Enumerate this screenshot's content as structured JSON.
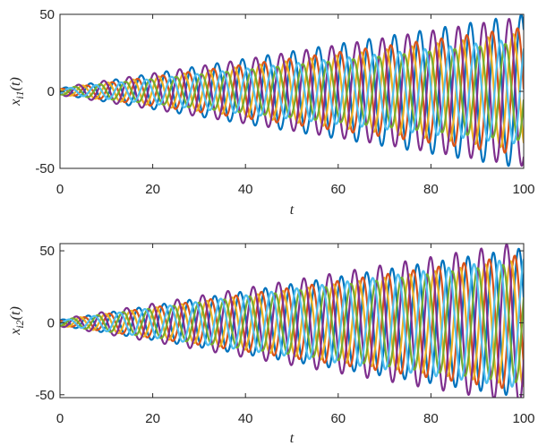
{
  "chart_data": [
    {
      "type": "line",
      "title": "",
      "xlabel": "t",
      "ylabel": "x_{i1}(t)",
      "ylabel_display": {
        "base": "x",
        "sub": "i1",
        "suffix": "(t)"
      },
      "xlim": [
        0,
        100
      ],
      "ylim": [
        -50,
        50
      ],
      "xticks": [
        0,
        20,
        40,
        60,
        80,
        100
      ],
      "yticks": [
        -50,
        0,
        50
      ],
      "xtick_labels": [
        "0",
        "20",
        "40",
        "60",
        "80",
        "100"
      ],
      "ytick_labels": [
        "-50",
        "0",
        "50"
      ],
      "grid": false,
      "legend": "none",
      "model": "oscillation with linearly growing amplitude, y(t) = (a0 + a1*t) * sin(omega*t + phase); omega in rad per unit t, phase in rad",
      "omega": 1.15,
      "series": [
        {
          "color": "#0072BD",
          "a0": 2.0,
          "a1": 0.48,
          "phase": 0.3
        },
        {
          "color": "#D95319",
          "a0": 1.5,
          "a1": 0.4,
          "phase": 1.2
        },
        {
          "color": "#EDB120",
          "a0": 2.0,
          "a1": 0.36,
          "phase": 2.3
        },
        {
          "color": "#7E2F8E",
          "a0": 2.5,
          "a1": 0.46,
          "phase": 3.3
        },
        {
          "color": "#77AC30",
          "a0": 2.0,
          "a1": 0.3,
          "phase": 4.2
        },
        {
          "color": "#4DBEEE",
          "a0": 1.5,
          "a1": 0.33,
          "phase": 5.3
        }
      ]
    },
    {
      "type": "line",
      "title": "",
      "xlabel": "t",
      "ylabel": "x_{i2}(t)",
      "ylabel_display": {
        "base": "x",
        "sub": "i2",
        "suffix": "(t)"
      },
      "xlim": [
        0,
        100
      ],
      "ylim": [
        -52,
        55
      ],
      "xticks": [
        0,
        20,
        40,
        60,
        80,
        100
      ],
      "yticks": [
        -50,
        0,
        50
      ],
      "xtick_labels": [
        "0",
        "20",
        "40",
        "60",
        "80",
        "100"
      ],
      "ytick_labels": [
        "-50",
        "0",
        "50"
      ],
      "grid": false,
      "legend": "none",
      "model": "oscillation with linearly growing amplitude, y(t) = (a0 + a1*t) * sin(omega*t + phase); omega in rad per unit t, phase in rad",
      "omega": 1.15,
      "series": [
        {
          "color": "#0072BD",
          "a0": 2.0,
          "a1": 0.5,
          "phase": 0.9
        },
        {
          "color": "#D95319",
          "a0": 1.5,
          "a1": 0.46,
          "phase": 1.9
        },
        {
          "color": "#EDB120",
          "a0": 2.0,
          "a1": 0.42,
          "phase": 2.9
        },
        {
          "color": "#7E2F8E",
          "a0": 2.5,
          "a1": 0.54,
          "phase": 3.9
        },
        {
          "color": "#77AC30",
          "a0": 2.0,
          "a1": 0.4,
          "phase": 4.8
        },
        {
          "color": "#4DBEEE",
          "a0": 1.5,
          "a1": 0.44,
          "phase": 5.7
        }
      ]
    }
  ]
}
